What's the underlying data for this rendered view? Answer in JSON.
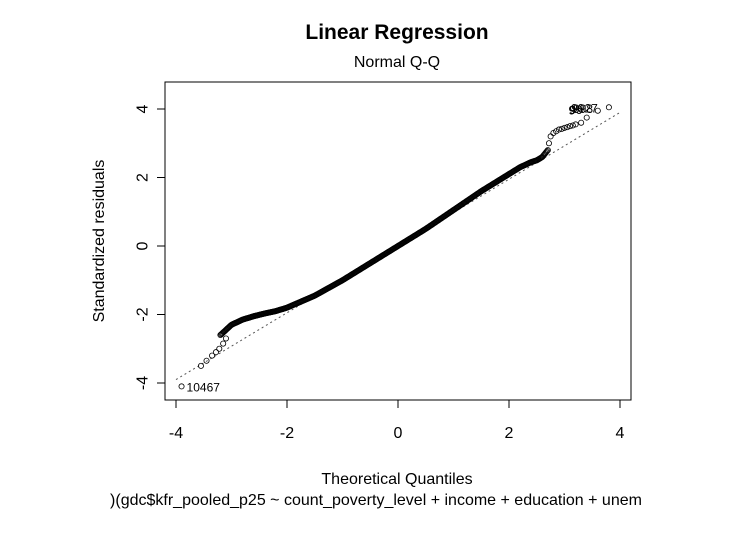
{
  "chart_data": {
    "type": "scatter",
    "title": "Linear Regression",
    "subtitle": "Normal Q-Q",
    "xlabel": "Theoretical Quantiles",
    "ylabel": "Standardized residuals",
    "caption": ")(gdc$kfr_pooled_p25 ~ count_poverty_level + income + education + unem",
    "xlim": [
      -4,
      4
    ],
    "ylim": [
      -4,
      4
    ],
    "x_ticks": [
      -4,
      -2,
      0,
      2,
      4
    ],
    "y_ticks": [
      -4,
      -2,
      0,
      2,
      4
    ],
    "x_tick_labels": [
      "-4",
      "-2",
      "0",
      "2",
      "4"
    ],
    "y_tick_labels": [
      "-4",
      "-2",
      "0",
      "2",
      "4"
    ],
    "grid": false,
    "reference_line": {
      "style": "dotted",
      "points": [
        [
          -4,
          -3.9
        ],
        [
          4,
          3.9
        ]
      ]
    },
    "qq_curve": {
      "x": [
        -3.2,
        -3.0,
        -2.8,
        -2.6,
        -2.4,
        -2.2,
        -2.0,
        -1.5,
        -1.0,
        -0.5,
        0.0,
        0.5,
        1.0,
        1.5,
        2.0,
        2.2,
        2.4,
        2.5,
        2.6,
        2.7
      ],
      "y": [
        -2.6,
        -2.3,
        -2.15,
        -2.05,
        -1.97,
        -1.9,
        -1.8,
        -1.45,
        -1.0,
        -0.5,
        0.0,
        0.5,
        1.05,
        1.6,
        2.1,
        2.3,
        2.45,
        2.5,
        2.6,
        2.8
      ]
    },
    "tail_points": {
      "x": [
        -3.9,
        -3.55,
        -3.45,
        -3.35,
        -3.28,
        -3.22,
        -3.15,
        -3.1,
        2.72,
        2.75,
        2.8,
        2.85,
        2.9,
        2.95,
        3.0,
        3.05,
        3.1,
        3.15,
        3.2,
        3.3,
        3.4,
        3.6,
        3.8
      ],
      "y": [
        -4.1,
        -3.5,
        -3.35,
        -3.2,
        -3.1,
        -3.0,
        -2.85,
        -2.7,
        3.0,
        3.2,
        3.3,
        3.35,
        3.4,
        3.42,
        3.45,
        3.47,
        3.5,
        3.52,
        3.55,
        3.6,
        3.75,
        3.95,
        4.05
      ]
    },
    "annotations": [
      {
        "label": "10467",
        "x": -3.9,
        "y": -4.1
      },
      {
        "label": "9",
        "x": 3.3,
        "y": 3.95
      },
      {
        "label": "99",
        "x": 3.4,
        "y": 3.97
      },
      {
        "label": "998",
        "x": 3.55,
        "y": 4.0
      },
      {
        "label": "9927",
        "x": 3.6,
        "y": 4.02
      }
    ]
  }
}
